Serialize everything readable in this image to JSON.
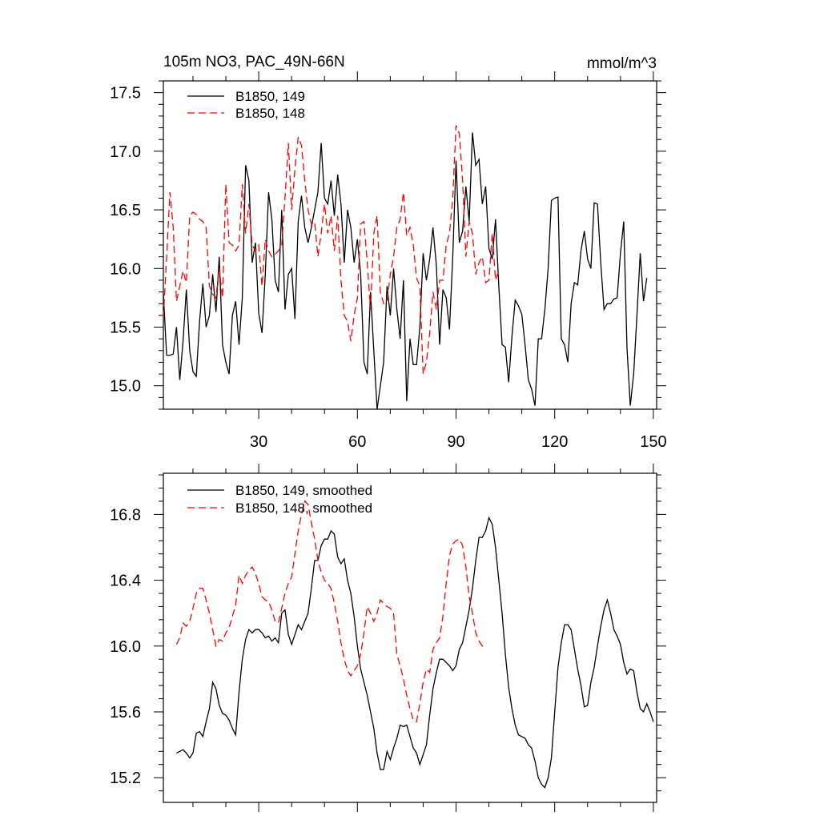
{
  "colors": {
    "series1": "#000000",
    "series2": "#ff0000"
  },
  "chart_data": [
    {
      "type": "line",
      "title": "105m NO3, PAC_49N-66N",
      "units": "mmol/m^3",
      "xlim": [
        1,
        151
      ],
      "ylim": [
        14.8,
        17.6
      ],
      "xticks": [
        30,
        60,
        90,
        120,
        150
      ],
      "yticks": [
        15.0,
        15.5,
        16.0,
        16.5,
        17.0,
        17.5
      ],
      "legend_position": "top-left",
      "series": [
        {
          "name": "B1850, 149",
          "style": "solid",
          "color": "#000000",
          "x_start": 1,
          "values": [
            15.78,
            15.26,
            15.26,
            15.27,
            15.5,
            15.05,
            15.38,
            15.82,
            15.3,
            15.12,
            15.08,
            15.55,
            15.87,
            15.5,
            15.6,
            15.95,
            15.63,
            16.1,
            15.35,
            15.2,
            15.1,
            15.6,
            15.72,
            15.35,
            15.75,
            16.88,
            16.75,
            16.05,
            16.22,
            15.62,
            15.45,
            15.95,
            16.65,
            16.42,
            15.9,
            15.8,
            16.5,
            15.65,
            15.95,
            16.0,
            15.57,
            16.4,
            16.62,
            16.35,
            16.22,
            16.35,
            16.5,
            16.65,
            17.07,
            16.6,
            16.55,
            16.75,
            16.45,
            16.8,
            16.55,
            16.05,
            16.5,
            16.35,
            16.05,
            16.25,
            15.95,
            15.2,
            15.1,
            15.8,
            15.3,
            14.8,
            15.0,
            15.2,
            15.85,
            15.6,
            16.0,
            15.65,
            15.4,
            15.9,
            14.87,
            15.4,
            15.18,
            15.18,
            15.5,
            16.13,
            15.9,
            16.08,
            16.35,
            16.03,
            15.35,
            15.82,
            15.75,
            15.48,
            16.1,
            16.92,
            16.22,
            16.32,
            16.7,
            16.4,
            17.16,
            16.88,
            16.93,
            16.55,
            16.7,
            16.17,
            16.08,
            16.42,
            15.85,
            15.35,
            15.33,
            15.03,
            15.42,
            15.73,
            15.68,
            15.61,
            15.35,
            15.05,
            14.97,
            14.83,
            15.4,
            15.4,
            15.65,
            16.0,
            16.58,
            16.6,
            16.61,
            15.4,
            15.35,
            15.2,
            15.7,
            15.88,
            15.86,
            16.15,
            16.32,
            16.08,
            16.0,
            16.56,
            16.55,
            16.05,
            15.65,
            15.7,
            15.7,
            15.74,
            15.75,
            16.13,
            16.4,
            15.32,
            14.83,
            15.1,
            15.6,
            16.13,
            15.72,
            15.92
          ]
        },
        {
          "name": "B1850, 148",
          "style": "dashed",
          "color": "#ff0000",
          "x_start": 1,
          "values": [
            15.58,
            16.1,
            16.65,
            16.35,
            15.72,
            15.85,
            15.98,
            15.88,
            16.45,
            16.48,
            16.46,
            16.42,
            16.4,
            16.35,
            15.85,
            15.78,
            15.75,
            16.0,
            15.75,
            16.72,
            16.22,
            16.2,
            16.15,
            16.2,
            16.72,
            16.3,
            16.55,
            16.2,
            16.15,
            16.2,
            15.85,
            16.25,
            16.15,
            16.1,
            16.12,
            16.15,
            16.2,
            16.6,
            17.07,
            16.5,
            16.85,
            17.12,
            17.05,
            16.75,
            16.5,
            16.38,
            16.4,
            16.1,
            16.3,
            16.55,
            16.3,
            16.45,
            16.15,
            16.45,
            15.9,
            15.6,
            15.55,
            15.38,
            15.6,
            15.75,
            16.38,
            16.4,
            16.05,
            15.65,
            16.3,
            16.45,
            15.8,
            15.7,
            15.72,
            15.95,
            16.1,
            16.35,
            16.42,
            16.65,
            16.28,
            16.35,
            16.2,
            15.92,
            15.85,
            15.1,
            15.2,
            15.45,
            15.8,
            15.65,
            15.9,
            15.9,
            16.2,
            16.3,
            16.6,
            17.22,
            17.15,
            16.75,
            16.1,
            16.4,
            16.3,
            15.95,
            16.05,
            16.1,
            15.88,
            15.9,
            16.3,
            15.9,
            15.98
          ]
        }
      ]
    },
    {
      "type": "line",
      "xlim": [
        1,
        151
      ],
      "ylim": [
        15.05,
        17.05
      ],
      "xticks": [
        30,
        60,
        90,
        120,
        150
      ],
      "yticks": [
        15.2,
        15.6,
        16.0,
        16.4,
        16.8
      ],
      "legend_position": "top-left",
      "series": [
        {
          "name": "B1850, 149, smoothed",
          "style": "solid",
          "color": "#000000",
          "x_start": 5,
          "values": [
            15.35,
            15.36,
            15.37,
            15.35,
            15.32,
            15.35,
            15.47,
            15.48,
            15.45,
            15.54,
            15.62,
            15.78,
            15.74,
            15.64,
            15.59,
            15.58,
            15.55,
            15.5,
            15.46,
            15.72,
            15.92,
            16.04,
            16.1,
            16.08,
            16.1,
            16.1,
            16.08,
            16.05,
            16.06,
            16.03,
            16.05,
            16.02,
            16.2,
            16.22,
            16.07,
            16.01,
            16.07,
            16.13,
            16.1,
            16.15,
            16.2,
            16.35,
            16.52,
            16.52,
            16.61,
            16.65,
            16.65,
            16.7,
            16.68,
            16.54,
            16.5,
            16.53,
            16.4,
            16.32,
            16.18,
            16.0,
            15.86,
            15.78,
            15.7,
            15.6,
            15.5,
            15.35,
            15.25,
            15.25,
            15.36,
            15.31,
            15.38,
            15.44,
            15.52,
            15.51,
            15.52,
            15.45,
            15.38,
            15.35,
            15.28,
            15.34,
            15.4,
            15.58,
            15.74,
            15.84,
            15.92,
            15.92,
            15.9,
            15.88,
            15.85,
            15.88,
            15.98,
            16.02,
            16.12,
            16.22,
            16.35,
            16.52,
            16.66,
            16.66,
            16.7,
            16.78,
            16.74,
            16.6,
            16.4,
            16.2,
            15.95,
            15.75,
            15.62,
            15.52,
            15.46,
            15.45,
            15.44,
            15.4,
            15.38,
            15.3,
            15.2,
            15.16,
            15.14,
            15.2,
            15.32,
            15.6,
            15.87,
            16.02,
            16.13,
            16.13,
            16.1,
            15.98,
            15.86,
            15.76,
            15.63,
            15.64,
            15.78,
            15.87,
            16.0,
            16.12,
            16.22,
            16.28,
            16.2,
            16.1,
            16.06,
            16.01,
            15.9,
            15.83,
            15.86,
            15.85,
            15.72,
            15.62,
            15.6,
            15.65,
            15.6,
            15.54
          ]
        },
        {
          "name": "B1850, 148, smoothed",
          "style": "dashed",
          "color": "#ff0000",
          "x_start": 5,
          "values": [
            16.01,
            16.05,
            16.14,
            16.12,
            16.15,
            16.23,
            16.32,
            16.35,
            16.35,
            16.28,
            16.2,
            16.1,
            16.0,
            16.04,
            16.03,
            16.08,
            16.11,
            16.18,
            16.25,
            16.43,
            16.38,
            16.43,
            16.46,
            16.48,
            16.44,
            16.38,
            16.3,
            16.28,
            16.27,
            16.22,
            16.15,
            16.14,
            16.23,
            16.32,
            16.38,
            16.42,
            16.56,
            16.7,
            16.8,
            16.88,
            16.86,
            16.75,
            16.65,
            16.52,
            16.45,
            16.4,
            16.38,
            16.35,
            16.26,
            16.15,
            16.02,
            15.92,
            15.85,
            15.82,
            15.85,
            15.88,
            15.95,
            16.08,
            16.24,
            16.2,
            16.15,
            16.2,
            16.28,
            16.26,
            16.24,
            16.23,
            16.2,
            15.95,
            15.88,
            15.8,
            15.7,
            15.62,
            15.55,
            15.54,
            15.65,
            15.78,
            15.86,
            15.84,
            15.98,
            16.02,
            16.05,
            16.18,
            16.38,
            16.55,
            16.62,
            16.64,
            16.65,
            16.61,
            16.48,
            16.3,
            16.2,
            16.08,
            16.03,
            16.0,
            16.0
          ]
        }
      ]
    }
  ]
}
